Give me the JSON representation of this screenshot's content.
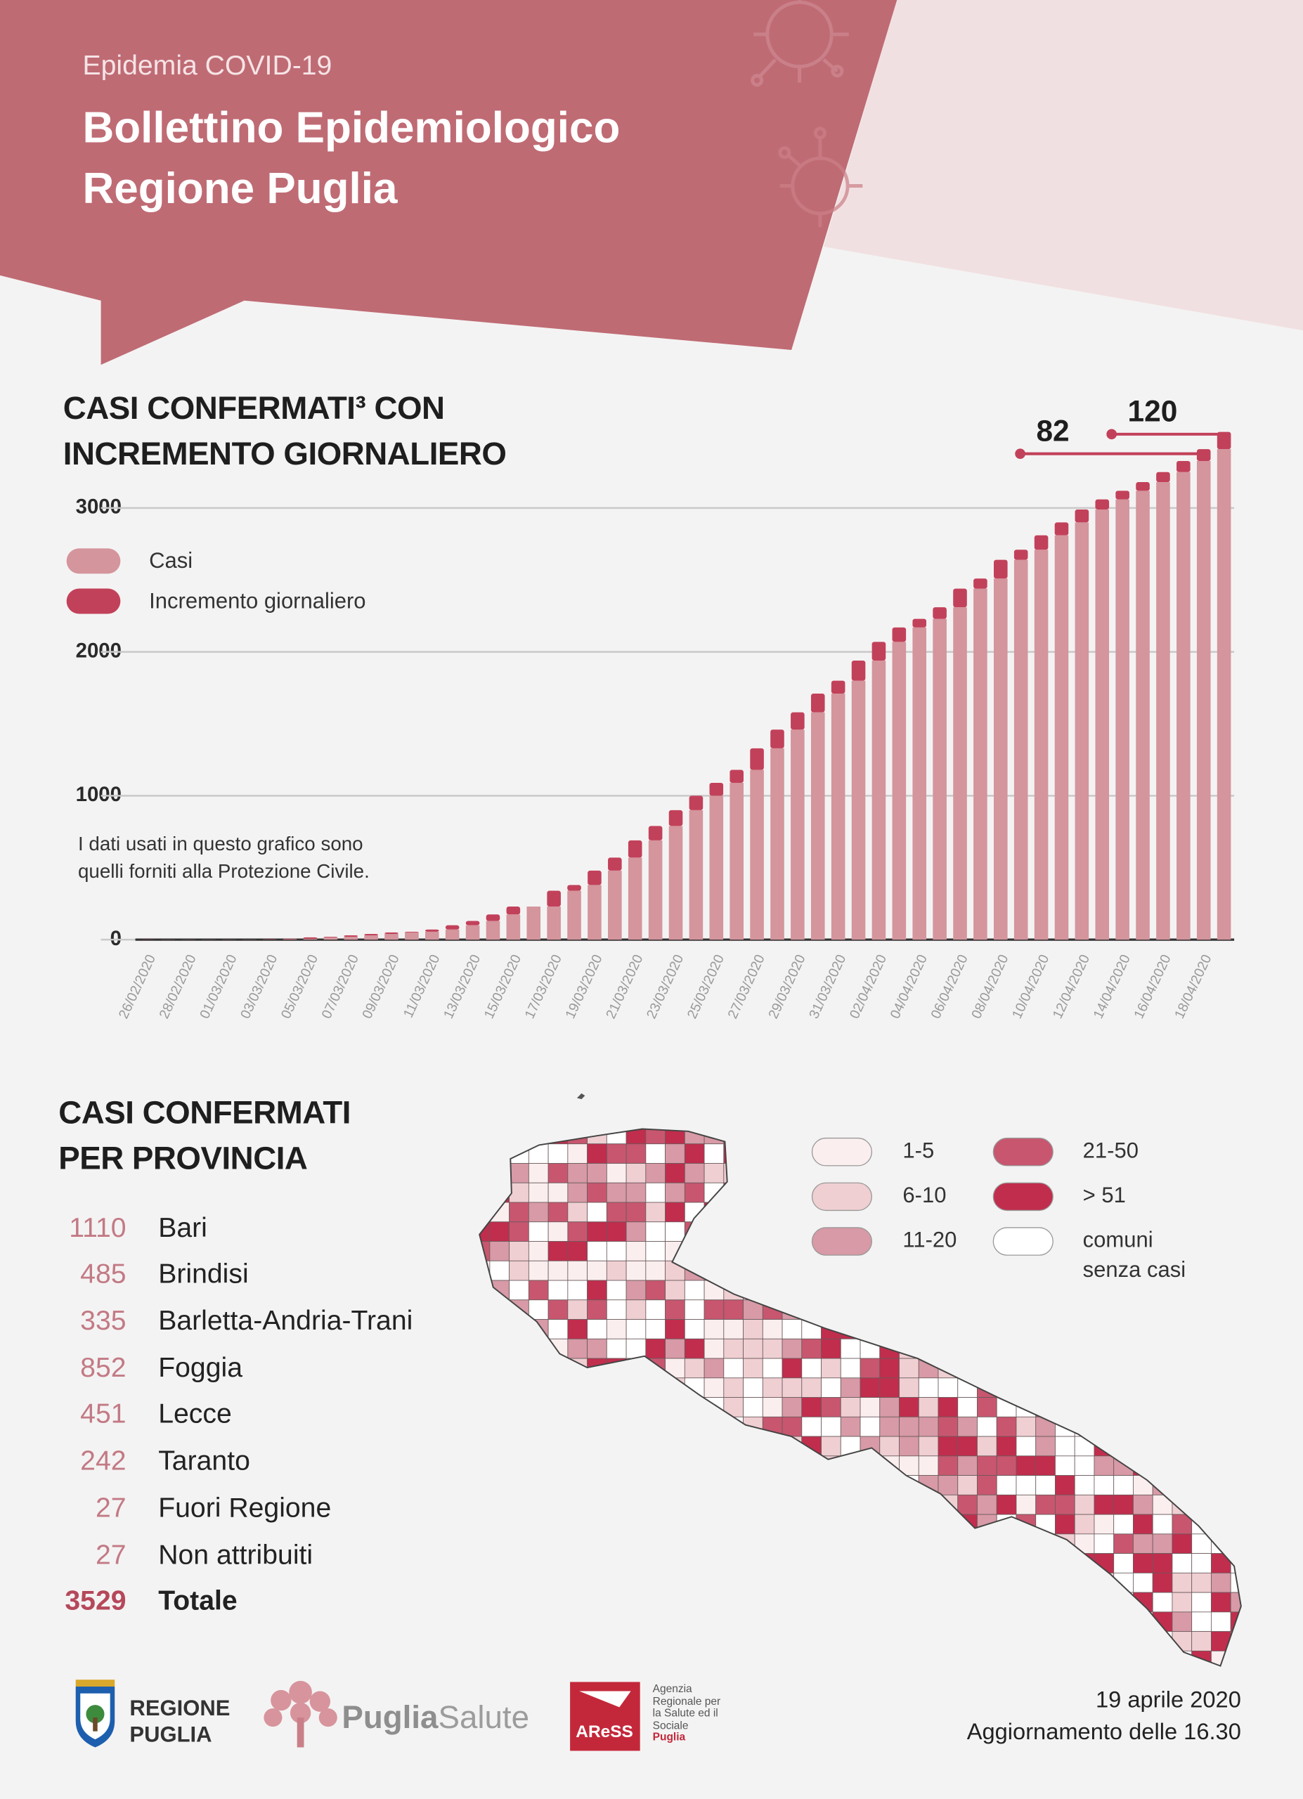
{
  "header": {
    "kicker": "Epidemia COVID-19",
    "title": "Bollettino Epidemiologico Regione Puglia"
  },
  "chart_data": {
    "type": "bar",
    "stacked": true,
    "title": "CASI CONFERMATI³ CON INCREMENTO GIORNALIERO",
    "note": "I dati usati in questo grafico sono quelli forniti alla Protezione Civile.",
    "categories": [
      "26/02/2020",
      null,
      "28/02/2020",
      null,
      "01/03/2020",
      null,
      "03/03/2020",
      null,
      "05/03/2020",
      null,
      "07/03/2020",
      null,
      "09/03/2020",
      null,
      "11/03/2020",
      null,
      "13/03/2020",
      null,
      "15/03/2020",
      null,
      "17/03/2020",
      null,
      "19/03/2020",
      null,
      "21/03/2020",
      null,
      "23/03/2020",
      null,
      "25/03/2020",
      null,
      "27/03/2020",
      null,
      "29/03/2020",
      null,
      "31/03/2020",
      null,
      "02/04/2020",
      null,
      "04/04/2020",
      null,
      "06/04/2020",
      null,
      "08/04/2020",
      null,
      "10/04/2020",
      null,
      "12/04/2020",
      null,
      "14/04/2020",
      null,
      "16/04/2020",
      null,
      "18/04/2020",
      null
    ],
    "series": [
      {
        "name": "Casi",
        "color": "#d4959c",
        "values": [
          0,
          1,
          1,
          1,
          1,
          1,
          1,
          3,
          6,
          16,
          20,
          30,
          40,
          50,
          55,
          70,
          100,
          130,
          175,
          230,
          230,
          340,
          380,
          480,
          570,
          690,
          790,
          900,
          1000,
          1090,
          1180,
          1330,
          1460,
          1580,
          1710,
          1800,
          1940,
          2070,
          2170,
          2230,
          2310,
          2440,
          2510,
          2640,
          2710,
          2810,
          2900,
          2990,
          3060,
          3120,
          3180,
          3250,
          3327,
          3409
        ]
      },
      {
        "name": "Incremento giornaliero",
        "color": "#c2415a",
        "values": [
          1,
          0,
          0,
          0,
          0,
          0,
          2,
          3,
          10,
          4,
          10,
          10,
          10,
          5,
          15,
          30,
          30,
          45,
          55,
          0,
          110,
          40,
          100,
          90,
          120,
          100,
          110,
          100,
          90,
          90,
          150,
          130,
          120,
          130,
          90,
          140,
          130,
          100,
          60,
          80,
          130,
          70,
          130,
          70,
          100,
          90,
          90,
          70,
          60,
          60,
          70,
          77,
          82,
          120
        ]
      }
    ],
    "ylim": [
      0,
      3700
    ],
    "yticks": [
      0,
      1000,
      2000,
      3000
    ],
    "grid": true,
    "legend": "upper left"
  },
  "provinces": {
    "title": "CASI CONFERMATI PER PROVINCIA",
    "rows": [
      {
        "cases": 1110,
        "name": "Bari"
      },
      {
        "cases": 485,
        "name": "Brindisi"
      },
      {
        "cases": 335,
        "name": "Barletta-Andria-Trani"
      },
      {
        "cases": 852,
        "name": "Foggia"
      },
      {
        "cases": 451,
        "name": "Lecce"
      },
      {
        "cases": 242,
        "name": "Taranto"
      },
      {
        "cases": 27,
        "name": "Fuori Regione"
      },
      {
        "cases": 27,
        "name": "Non attribuiti"
      }
    ],
    "total": {
      "cases": 3529,
      "name": "Totale"
    }
  },
  "map_legend": {
    "items": [
      {
        "label": "1-5",
        "color": "#fbeeee"
      },
      {
        "label": "6-10",
        "color": "#efcfd2"
      },
      {
        "label": "11-20",
        "color": "#d79aa6"
      },
      {
        "label": "21-50",
        "color": "#c8566f"
      },
      {
        "label": "> 51",
        "color": "#c12d4d"
      },
      {
        "label": "comuni senza casi",
        "color": "#ffffff"
      }
    ]
  },
  "footer": {
    "region": "REGIONE PUGLIA",
    "brand_bold": "Puglia",
    "brand_light": "Salute",
    "agency_mark": "AReSS",
    "agency_name": "Agenzia Regionale per la Salute ed il Sociale",
    "agency_region": "Puglia",
    "date": "19 aprile 2020",
    "update": "Aggiornamento delle 16.30"
  }
}
